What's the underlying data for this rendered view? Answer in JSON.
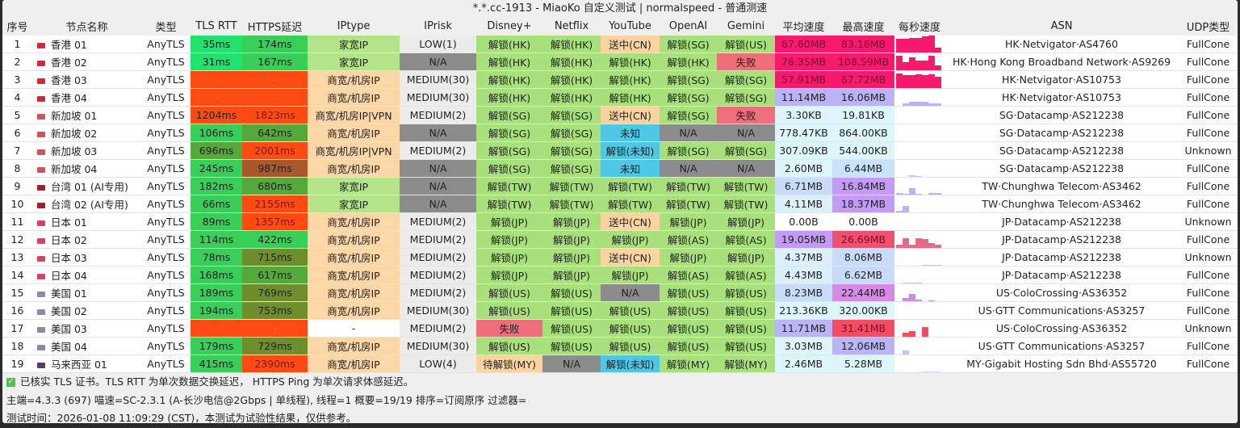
{
  "window": {
    "title": "*.*.cc-1913 - MiaoKo 自定义测试 | normalspeed - 普通测速"
  },
  "columns": [
    "序号",
    "节点名称",
    "类型",
    "TLS RTT",
    "HTTPS延迟",
    "IPtype",
    "IPrisk",
    "Disney+",
    "Netflix",
    "YouTube",
    "OpenAI",
    "Gemini",
    "平均速度",
    "最高速度",
    "每秒速度",
    "ASN",
    "UDP类型"
  ],
  "colors": {
    "unlock": "#a8e07c",
    "pending": "#fbd3a0",
    "fail": "#ee6f7b",
    "na": "#8c8c8c",
    "unknown": "#4fc8e6",
    "home_ip": "#b2e488",
    "biz_ip": "#fbd6a6",
    "lat_fast": "#1fe36b",
    "lat_ok": "#38cf58",
    "lat_mid": "#55a83a",
    "lat_slow": "#6e8e2c",
    "lat_bad": "#a8582a",
    "lat_fail": "#ff4a12"
  },
  "flags": {
    "hk": "#d9263a",
    "sg": "#e04a5a",
    "tw": "#b0182a",
    "jp": "#e0405a",
    "us": "#8a8aa8",
    "my": "#5a3a6a"
  },
  "rows": [
    {
      "n": "1",
      "flag": "hk",
      "name": "香港 01",
      "type": "AnyTLS",
      "tls": "35ms",
      "https": "174ms",
      "iptype": "家宽IP",
      "iprisk": "LOW(1)",
      "disney": "解锁(HK)",
      "netflix": "解锁(HK)",
      "youtube": "送中(CN)",
      "openai": "解锁(SG)",
      "gemini": "解锁(US)",
      "avg": "67.60MB",
      "avg_c": "#f7196b",
      "max": "83.16MB",
      "max_c": "#f7196b",
      "spark": [
        0.8,
        0.8,
        0.85,
        0.85,
        0.95,
        1,
        0.3
      ],
      "spark_c": "#f7196b",
      "asn": "HK·Netvigator·AS4760",
      "udp": "FullCone"
    },
    {
      "n": "2",
      "flag": "hk",
      "name": "香港 02",
      "type": "AnyTLS",
      "tls": "31ms",
      "https": "167ms",
      "iptype": "家宽IP",
      "iprisk": "N/A",
      "disney": "解锁(HK)",
      "netflix": "解锁(HK)",
      "youtube": "解锁(HK)",
      "openai": "解锁(HK)",
      "gemini": "失败",
      "avg": "76.35MB",
      "avg_c": "#f7196b",
      "max": "108.59MB",
      "max_c": "#f7196b",
      "spark": [
        0.9,
        0.5,
        0.8,
        0.6,
        0.6,
        0.9,
        0.3
      ],
      "spark_c": "#f7196b",
      "asn": "HK·Hong Kong Broadband Network·AS9269",
      "udp": "FullCone"
    },
    {
      "n": "3",
      "flag": "hk",
      "name": "香港 03",
      "type": "AnyTLS",
      "tls": "-",
      "https": "-",
      "iptype": "商宽/机房IP",
      "iprisk": "MEDIUM(30)",
      "disney": "解锁(HK)",
      "netflix": "解锁(HK)",
      "youtube": "解锁(HK)",
      "openai": "解锁(SG)",
      "gemini": "解锁(SG)",
      "avg": "57.91MB",
      "avg_c": "#f7196b",
      "max": "67.72MB",
      "max_c": "#f7196b",
      "spark": [
        0.9,
        0.8,
        0.8,
        0.85,
        0.8,
        0.85,
        0.7
      ],
      "spark_c": "#f7196b",
      "asn": "HK·Netvigator·AS10753",
      "udp": "FullCone"
    },
    {
      "n": "4",
      "flag": "hk",
      "name": "香港 04",
      "type": "AnyTLS",
      "tls": "-",
      "https": "-",
      "iptype": "商宽/机房IP",
      "iprisk": "MEDIUM(30)",
      "disney": "解锁(HK)",
      "netflix": "解锁(HK)",
      "youtube": "解锁(HK)",
      "openai": "解锁(SG)",
      "gemini": "解锁(SG)",
      "avg": "11.14MB",
      "avg_c": "#b9b4f5",
      "max": "16.06MB",
      "max_c": "#b9b4f5",
      "spark": [
        0,
        0.15,
        0.25,
        0.25,
        0.25,
        0.15,
        0.15
      ],
      "spark_c": "#b9b4f5",
      "asn": "HK·Netvigator·AS10753",
      "udp": "FullCone"
    },
    {
      "n": "5",
      "flag": "sg",
      "name": "新加坡 01",
      "type": "AnyTLS",
      "tls": "1204ms",
      "https": "1823ms",
      "iptype": "商宽/机房IP|VPN",
      "iprisk": "MEDIUM(2)",
      "disney": "解锁(SG)",
      "netflix": "解锁(SG)",
      "youtube": "送中(CN)",
      "openai": "解锁(SG)",
      "gemini": "失败",
      "avg": "3.30KB",
      "avg_c": "#dcf6fb",
      "max": "19.81KB",
      "max_c": "#dcf6fb",
      "spark": [],
      "spark_c": "#b9b4f5",
      "asn": "SG·Datacamp·AS212238",
      "udp": "FullCone"
    },
    {
      "n": "6",
      "flag": "sg",
      "name": "新加坡 02",
      "type": "AnyTLS",
      "tls": "106ms",
      "https": "642ms",
      "iptype": "商宽/机房IP",
      "iprisk": "N/A",
      "disney": "解锁(SG)",
      "netflix": "解锁(SG)",
      "youtube": "未知",
      "openai": "N/A",
      "gemini": "N/A",
      "avg": "778.47KB",
      "avg_c": "#dcf6fb",
      "max": "864.00KB",
      "max_c": "#dcf6fb",
      "spark": [],
      "spark_c": "#b9b4f5",
      "asn": "SG·Datacamp·AS212238",
      "udp": "FullCone"
    },
    {
      "n": "7",
      "flag": "sg",
      "name": "新加坡 03",
      "type": "AnyTLS",
      "tls": "696ms",
      "https": "2001ms",
      "iptype": "商宽/机房IP|VPN",
      "iprisk": "MEDIUM(2)",
      "disney": "解锁(SG)",
      "netflix": "解锁(SG)",
      "youtube": "解锁(未知)",
      "openai": "解锁(SG)",
      "gemini": "解锁(SG)",
      "avg": "307.09KB",
      "avg_c": "#dcf6fb",
      "max": "544.00KB",
      "max_c": "#dcf6fb",
      "spark": [],
      "spark_c": "#b9b4f5",
      "asn": "SG·Datacamp·AS212238",
      "udp": "Unknown"
    },
    {
      "n": "8",
      "flag": "sg",
      "name": "新加坡 04",
      "type": "AnyTLS",
      "tls": "245ms",
      "https": "987ms",
      "iptype": "商宽/机房IP",
      "iprisk": "N/A",
      "disney": "解锁(SG)",
      "netflix": "解锁(SG)",
      "youtube": "未知",
      "openai": "N/A",
      "gemini": "N/A",
      "avg": "2.60MB",
      "avg_c": "#dcf6fb",
      "max": "6.44MB",
      "max_c": "#c8e2fb",
      "spark": [
        0,
        0,
        0.12,
        0.05,
        0,
        0.03,
        0
      ],
      "spark_c": "#c8c4f5",
      "asn": "SG·Datacamp·AS212238",
      "udp": "FullCone"
    },
    {
      "n": "9",
      "flag": "tw",
      "name": "台湾 01 (AI专用)",
      "type": "AnyTLS",
      "tls": "182ms",
      "https": "680ms",
      "iptype": "家宽IP",
      "iprisk": "N/A",
      "disney": "解锁(TW)",
      "netflix": "解锁(TW)",
      "youtube": "解锁(TW)",
      "openai": "解锁(TW)",
      "gemini": "解锁(TW)",
      "avg": "6.71MB",
      "avg_c": "#c8dcfa",
      "max": "16.84MB",
      "max_c": "#c39af5",
      "spark": [
        0.1,
        0.05,
        0.4,
        0.05,
        0,
        0.1,
        0.1
      ],
      "spark_c": "#b9b4f5",
      "asn": "TW·Chunghwa Telecom·AS3462",
      "udp": "FullCone"
    },
    {
      "n": "10",
      "flag": "tw",
      "name": "台湾 02 (AI专用)",
      "type": "AnyTLS",
      "tls": "66ms",
      "https": "2155ms",
      "iptype": "家宽IP",
      "iprisk": "N/A",
      "disney": "解锁(TW)",
      "netflix": "解锁(TW)",
      "youtube": "解锁(TW)",
      "openai": "解锁(TW)",
      "gemini": "解锁(TW)",
      "avg": "4.11MB",
      "avg_c": "#dcf0fb",
      "max": "18.37MB",
      "max_c": "#c39af5",
      "spark": [
        0.1,
        0.4,
        0,
        0,
        0,
        0,
        0
      ],
      "spark_c": "#b9b4f5",
      "asn": "TW·Chunghwa Telecom·AS3462",
      "udp": "FullCone"
    },
    {
      "n": "11",
      "flag": "jp",
      "name": "日本 01",
      "type": "AnyTLS",
      "tls": "89ms",
      "https": "1357ms",
      "iptype": "商宽/机房IP",
      "iprisk": "MEDIUM(2)",
      "disney": "解锁(JP)",
      "netflix": "解锁(JP)",
      "youtube": "送中(CN)",
      "openai": "解锁(JP)",
      "gemini": "解锁(JP)",
      "avg": "0.00B",
      "avg_c": "#ffffff",
      "max": "0.00B",
      "max_c": "#ffffff",
      "spark": [],
      "spark_c": "#b9b4f5",
      "asn": "JP·Datacamp·AS212238",
      "udp": "Unknown"
    },
    {
      "n": "12",
      "flag": "jp",
      "name": "日本 02",
      "type": "AnyTLS",
      "tls": "114ms",
      "https": "422ms",
      "iptype": "商宽/机房IP",
      "iprisk": "MEDIUM(2)",
      "disney": "解锁(JP)",
      "netflix": "解锁(JP)",
      "youtube": "解锁(JP)",
      "openai": "解锁(AS)",
      "gemini": "解锁(AS)",
      "avg": "19.05MB",
      "avg_c": "#c39af5",
      "max": "26.69MB",
      "max_c": "#f0506e",
      "spark": [
        0.2,
        0.6,
        0.2,
        0.6,
        0.55,
        0.3,
        0.2
      ],
      "spark_c": "#e9688a",
      "asn": "JP·Datacamp·AS212238",
      "udp": "FullCone"
    },
    {
      "n": "13",
      "flag": "jp",
      "name": "日本 03",
      "type": "AnyTLS",
      "tls": "78ms",
      "https": "715ms",
      "iptype": "商宽/机房IP",
      "iprisk": "MEDIUM(2)",
      "disney": "解锁(JP)",
      "netflix": "解锁(JP)",
      "youtube": "送中(CN)",
      "openai": "解锁(JP)",
      "gemini": "解锁(JP)",
      "avg": "4.37MB",
      "avg_c": "#dcf0fb",
      "max": "8.06MB",
      "max_c": "#c8dcfa",
      "spark": [
        0,
        0,
        0,
        0,
        0.08,
        0.08,
        0.05
      ],
      "spark_c": "#c8c4f5",
      "asn": "JP·Datacamp·AS212238",
      "udp": "Unknown"
    },
    {
      "n": "14",
      "flag": "jp",
      "name": "日本 04",
      "type": "AnyTLS",
      "tls": "168ms",
      "https": "617ms",
      "iptype": "商宽/机房IP",
      "iprisk": "MEDIUM(2)",
      "disney": "解锁(JP)",
      "netflix": "解锁(JP)",
      "youtube": "解锁(JP)",
      "openai": "解锁(AS)",
      "gemini": "解锁(AS)",
      "avg": "4.43MB",
      "avg_c": "#dcf0fb",
      "max": "6.62MB",
      "max_c": "#c8dcfa",
      "spark": [
        0,
        0.05,
        0.05,
        0.05,
        0,
        0,
        0
      ],
      "spark_c": "#c8c4f5",
      "asn": "JP·Datacamp·AS212238",
      "udp": "FullCone"
    },
    {
      "n": "15",
      "flag": "us",
      "name": "美国 01",
      "type": "AnyTLS",
      "tls": "189ms",
      "https": "769ms",
      "iptype": "商宽/机房IP",
      "iprisk": "MEDIUM(2)",
      "disney": "解锁(US)",
      "netflix": "解锁(US)",
      "youtube": "N/A",
      "openai": "解锁(US)",
      "gemini": "解锁(US)",
      "avg": "8.23MB",
      "avg_c": "#c8dcfa",
      "max": "22.44MB",
      "max_c": "#d68ae6",
      "spark": [
        0,
        0.2,
        0.45,
        0.1,
        0,
        0.05,
        0
      ],
      "spark_c": "#d08ae0",
      "asn": "US·ColoCrossing·AS36352",
      "udp": "FullCone"
    },
    {
      "n": "16",
      "flag": "us",
      "name": "美国 02",
      "type": "AnyTLS",
      "tls": "194ms",
      "https": "753ms",
      "iptype": "商宽/机房IP",
      "iprisk": "MEDIUM(30)",
      "disney": "解锁(US)",
      "netflix": "解锁(US)",
      "youtube": "解锁(US)",
      "openai": "解锁(US)",
      "gemini": "解锁(US)",
      "avg": "213.36KB",
      "avg_c": "#dcf6fb",
      "max": "320.00KB",
      "max_c": "#dcf6fb",
      "spark": [],
      "spark_c": "#b9b4f5",
      "asn": "US·GTT Communications·AS3257",
      "udp": "FullCone"
    },
    {
      "n": "17",
      "flag": "us",
      "name": "美国 03",
      "type": "AnyTLS",
      "tls": "-",
      "https": "-",
      "iptype": "-",
      "iprisk": "MEDIUM(2)",
      "disney": "失败",
      "netflix": "解锁(US)",
      "youtube": "解锁(US)",
      "openai": "解锁(US)",
      "gemini": "解锁(US)",
      "avg": "11.71MB",
      "avg_c": "#b9b4f5",
      "max": "31.41MB",
      "max_c": "#f44d62",
      "spark": [
        0,
        0.25,
        0.35,
        0,
        0.6,
        0,
        0
      ],
      "spark_c": "#f44d62",
      "asn": "US·ColoCrossing·AS36352",
      "udp": "Unknown"
    },
    {
      "n": "18",
      "flag": "us",
      "name": "美国 04",
      "type": "AnyTLS",
      "tls": "179ms",
      "https": "729ms",
      "iptype": "商宽/机房IP",
      "iprisk": "MEDIUM(30)",
      "disney": "解锁(US)",
      "netflix": "解锁(US)",
      "youtube": "解锁(US)",
      "openai": "解锁(US)",
      "gemini": "解锁(US)",
      "avg": "3.03MB",
      "avg_c": "#dcf6fb",
      "max": "12.06MB",
      "max_c": "#b9b4f5",
      "spark": [
        0,
        0.25,
        0,
        0,
        0,
        0,
        0
      ],
      "spark_c": "#c8c4f5",
      "asn": "US·GTT Communications·AS3257",
      "udp": "FullCone"
    },
    {
      "n": "19",
      "flag": "my",
      "name": "马来西亚 01",
      "type": "AnyTLS",
      "tls": "415ms",
      "https": "2390ms",
      "iptype": "商宽/机房IP",
      "iprisk": "LOW(4)",
      "disney": "待解锁(MY)",
      "netflix": "N/A",
      "youtube": "解锁(未知)",
      "openai": "解锁(MY)",
      "gemini": "解锁(MY)",
      "avg": "2.46MB",
      "avg_c": "#dcf6fb",
      "max": "5.28MB",
      "max_c": "#dcf6fb",
      "spark": [
        0,
        0,
        0,
        0,
        0.05,
        0.05,
        0.05
      ],
      "spark_c": "#c8dcfa",
      "asn": "MY·Gigabit Hosting Sdn Bhd·AS55720",
      "udp": "FullCone"
    }
  ],
  "footer": {
    "note": "已核实 TLS 证书。TLS RTT 为单次数据交换延迟， HTTPS Ping 为单次请求体感延迟。",
    "info": "主端=4.3.3 (697) 喵速=SC-2.3.1 (A-长沙电信@2Gbps | 单线程), 线程=1 概要=19/19 排序=订阅原序 过滤器=",
    "time": "测试时间：2026-01-08 11:09:29 (CST)，本测试为试验性结果，仅供参考。"
  }
}
